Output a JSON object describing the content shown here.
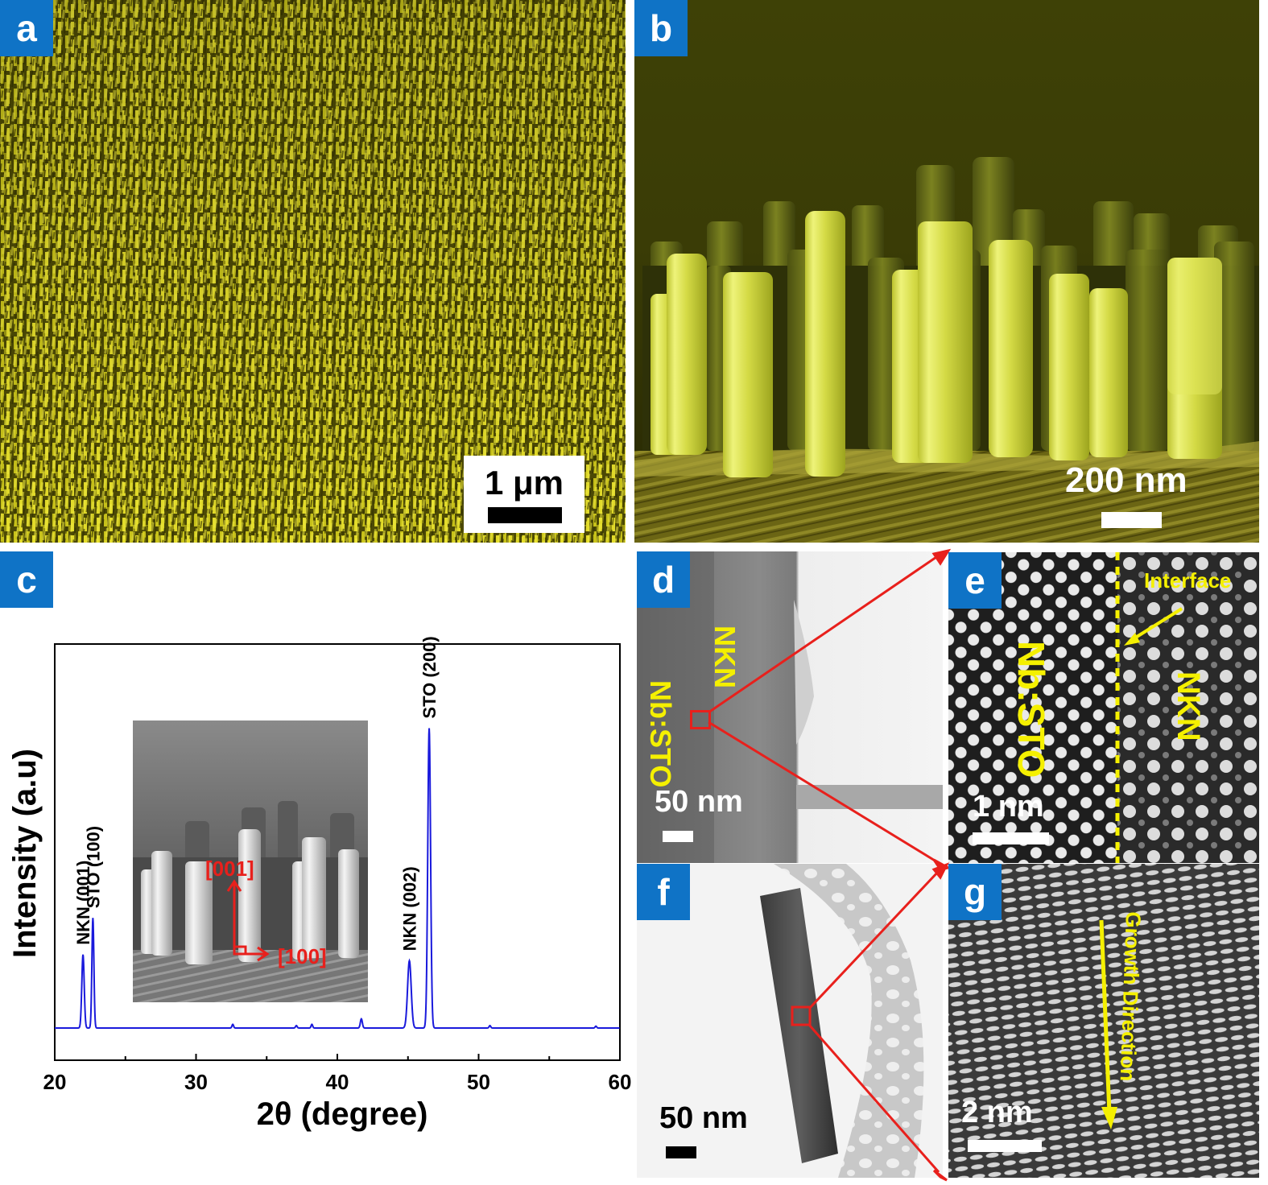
{
  "panels": {
    "a": {
      "label": "a",
      "scalebar": "1 μm"
    },
    "b": {
      "label": "b",
      "scalebar": "200 nm"
    },
    "c": {
      "label": "c"
    },
    "d": {
      "label": "d",
      "scalebar": "50 nm",
      "left_label": "Nb:STO",
      "right_label": "NKN"
    },
    "e": {
      "label": "e",
      "scalebar": "1 nm",
      "left_label": "Nb:STO",
      "right_label": "NKN",
      "interface_label": "Interface"
    },
    "f": {
      "label": "f",
      "scalebar": "50 nm"
    },
    "g": {
      "label": "g",
      "scalebar": "2 nm",
      "direction_label": "Growth Direction"
    }
  },
  "chart_data": {
    "type": "line",
    "xlabel": "2θ (degree)",
    "ylabel": "Intensity (a.u)",
    "xlim": [
      20,
      60
    ],
    "xticks": [
      "20",
      "30",
      "40",
      "50",
      "60"
    ],
    "series": [
      {
        "color": "#1a1adc"
      }
    ],
    "peaks": [
      {
        "x": 22.0,
        "height": 0.24,
        "width": 0.12,
        "label": "NKN (001)"
      },
      {
        "x": 22.7,
        "height": 0.36,
        "width": 0.1,
        "label": "STO (100)"
      },
      {
        "x": 32.6,
        "height": 0.012,
        "width": 0.08,
        "label": ""
      },
      {
        "x": 37.1,
        "height": 0.008,
        "width": 0.08,
        "label": ""
      },
      {
        "x": 38.2,
        "height": 0.012,
        "width": 0.08,
        "label": ""
      },
      {
        "x": 41.7,
        "height": 0.03,
        "width": 0.1,
        "label": ""
      },
      {
        "x": 45.1,
        "height": 0.22,
        "width": 0.18,
        "label": "NKN (002)"
      },
      {
        "x": 46.5,
        "height": 0.98,
        "width": 0.14,
        "label": "STO (200)"
      },
      {
        "x": 50.8,
        "height": 0.008,
        "width": 0.08,
        "label": ""
      },
      {
        "x": 58.3,
        "height": 0.006,
        "width": 0.08,
        "label": ""
      }
    ],
    "inset": {
      "axis_vertical": "[001]",
      "axis_horizontal": "[100]"
    },
    "grid": false
  }
}
